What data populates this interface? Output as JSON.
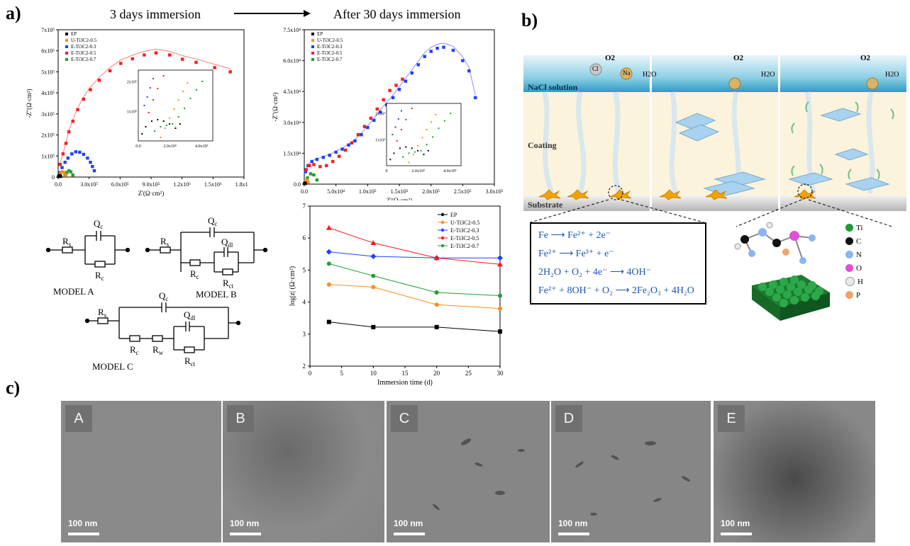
{
  "panel_labels": {
    "a": "a)",
    "b": "b)",
    "c": "c)"
  },
  "panel_a": {
    "title_left": "3 days immersion",
    "title_right": "After 30  days immersion",
    "legend_left": [
      "EP",
      "U-Ti3C2-0.5",
      "E-Ti3C2-0.3",
      "E-Ti3C2-0.5",
      "E-Ti3C2-0.7"
    ],
    "legend_right": [
      "EP",
      "U-Ti3C2-0.5",
      "E-Ti3C2-0.3",
      "E-Ti3C2-0.5",
      "E-Ti3C2-0.7"
    ],
    "series_colors": [
      "#000000",
      "#ff8c1a",
      "#1f3fff",
      "#ff1a1a",
      "#1fa02f"
    ],
    "models": [
      "MODEL  A",
      "MODEL  B",
      "MODEL  C"
    ]
  },
  "panel_b": {
    "labels": {
      "solution": "NaCl solution",
      "coating": "Coating",
      "substrate": "Substrate",
      "o2": "O2",
      "cl": "Cl",
      "na": "Na",
      "h2o": "H2O"
    },
    "reactions": [
      "Fe ⟶ Fe²⁺ + 2e⁻",
      "Fe²⁺ ⟶ Fe³⁺ + e⁻",
      "2H₂O + O₂ + 4e⁻ ⟶ 4OH⁻",
      "Fe²⁺ + 8OH⁻ + O₂ ⟶ 2Fe₂O₃ + 4H₂O"
    ],
    "atom_legend": [
      {
        "label": "Ti",
        "color": "#1e9a3a"
      },
      {
        "label": "C",
        "color": "#111111"
      },
      {
        "label": "N",
        "color": "#8ab4f2"
      },
      {
        "label": "O",
        "color": "#e04fd6"
      },
      {
        "label": "H",
        "color": "#e9e9e9"
      },
      {
        "label": "P",
        "color": "#f0a36b"
      }
    ]
  },
  "panel_c": {
    "images": [
      {
        "letter": "A",
        "scale": "100 nm"
      },
      {
        "letter": "B",
        "scale": "100 nm"
      },
      {
        "letter": "C",
        "scale": "100 nm"
      },
      {
        "letter": "D",
        "scale": "100 nm"
      },
      {
        "letter": "E",
        "scale": "100 nm"
      }
    ]
  },
  "chart_data": [
    {
      "type": "scatter",
      "title": "3 days immersion",
      "xlabel": "Z'(Ω·cm²)",
      "ylabel": "-Z''(Ω·cm²)",
      "xticks": [
        "0.0",
        "3.0x10⁵",
        "6.0x10⁵",
        "9.0x10⁵",
        "1.2x10⁶",
        "1.5x10⁶",
        "1.8x10⁶"
      ],
      "yticks": [
        "0",
        "1x10⁵",
        "2x10⁵",
        "3x10⁵",
        "4x10⁵",
        "5x10⁵",
        "6x10⁵",
        "7x10⁵"
      ],
      "xlim": [
        0,
        1900000
      ],
      "ylim": [
        0,
        700000
      ],
      "series": [
        {
          "name": "E-Ti3C2-0.5",
          "x": [
            20000,
            50000,
            80000,
            110000,
            150000,
            200000,
            260000,
            330000,
            420000,
            530000,
            640000,
            760000,
            880000,
            1000000,
            1140000,
            1270000,
            1410000,
            1600000,
            1760000
          ],
          "y": [
            60000,
            110000,
            160000,
            215000,
            265000,
            320000,
            370000,
            415000,
            460000,
            505000,
            540000,
            562000,
            580000,
            590000,
            580000,
            560000,
            545000,
            520000,
            500000
          ]
        },
        {
          "name": "E-Ti3C2-0.3",
          "x": [
            20000,
            40000,
            70000,
            100000,
            140000,
            180000,
            220000,
            260000,
            300000,
            330000,
            350000,
            370000
          ],
          "y": [
            20000,
            45000,
            70000,
            90000,
            110000,
            120000,
            118000,
            108000,
            90000,
            70000,
            50000,
            30000
          ]
        },
        {
          "name": "E-Ti3C2-0.7",
          "x": [
            70000,
            90000,
            110000,
            130000,
            150000
          ],
          "y": [
            10000,
            22000,
            30000,
            25000,
            10000
          ]
        },
        {
          "name": "U-Ti3C2-0.5",
          "x": [
            20000,
            40000,
            60000,
            80000
          ],
          "y": [
            15000,
            25000,
            22000,
            8000
          ]
        },
        {
          "name": "EP",
          "x": [
            5000,
            10000,
            15000,
            20000,
            25000
          ],
          "y": [
            3000,
            6000,
            7000,
            6000,
            3000
          ]
        }
      ],
      "inset": {
        "xticks": [
          "0.0",
          "2.0x10⁵",
          "4.0x10⁵"
        ],
        "yticks": [
          "1x10⁵",
          "2x10⁵"
        ]
      }
    },
    {
      "type": "scatter",
      "title": "After 30  days immersion",
      "xlabel": "Z'(Ω·cm²)",
      "ylabel": "-Z''(Ω·cm²)",
      "xticks": [
        "0.0",
        "5.0x10⁴",
        "1.0x10⁵",
        "1.5x10⁵",
        "2.0x10⁵",
        "2.5x10⁵",
        "3.0x10⁵"
      ],
      "yticks": [
        "0.0",
        "1.5x10⁴",
        "3.0x10⁴",
        "4.5x10⁴",
        "6.0x10⁴",
        "7.5x10⁴"
      ],
      "xlim": [
        0,
        300000
      ],
      "ylim": [
        0,
        75000
      ],
      "series": [
        {
          "name": "E-Ti3C2-0.3",
          "x": [
            2000,
            6000,
            12000,
            20000,
            30000,
            40000,
            50000,
            60000,
            70000,
            80000,
            90000,
            100000,
            110000,
            120000,
            130000,
            140000,
            150000,
            160000,
            170000,
            180000,
            190000,
            200000,
            210000,
            220000,
            235000,
            250000,
            260000,
            270000
          ],
          "y": [
            6000,
            9000,
            11000,
            12000,
            13000,
            14000,
            15500,
            17000,
            19000,
            21000,
            24000,
            27500,
            31000,
            35000,
            38500,
            42000,
            46000,
            50000,
            54000,
            58000,
            62000,
            64500,
            66000,
            66500,
            65000,
            60000,
            55000,
            42000
          ]
        },
        {
          "name": "E-Ti3C2-0.5",
          "x": [
            3000,
            8000,
            15000,
            25000,
            35000,
            45000,
            55000,
            65000,
            75000,
            85000,
            95000,
            105000,
            115000,
            125000,
            135000,
            145000,
            155000
          ],
          "y": [
            7000,
            9000,
            9500,
            8500,
            9000,
            11000,
            13500,
            16500,
            20000,
            24000,
            28000,
            32000,
            36500,
            41000,
            45500,
            48000,
            51000
          ]
        },
        {
          "name": "E-Ti3C2-0.7",
          "x": [
            5000,
            10000,
            15000,
            20000
          ],
          "y": [
            3000,
            5000,
            4500,
            2000
          ]
        },
        {
          "name": "U-Ti3C2-0.5",
          "x": [
            2000,
            4000,
            6000
          ],
          "y": [
            1000,
            2000,
            1000
          ]
        },
        {
          "name": "EP",
          "x": [
            500,
            1000,
            1500
          ],
          "y": [
            300,
            500,
            300
          ]
        }
      ],
      "inset": {
        "xticks": [
          "0",
          "2.0x10³",
          "4.0x10³"
        ],
        "yticks": [
          "1x10³",
          "2x10³"
        ]
      }
    },
    {
      "type": "line",
      "title": "",
      "xlabel": "Immersion time (d)",
      "ylabel": "log|z| (Ω·cm²)",
      "xlim": [
        0,
        30
      ],
      "ylim": [
        2,
        7
      ],
      "xticks": [
        "0",
        "5",
        "10",
        "15",
        "20",
        "25",
        "30"
      ],
      "yticks": [
        "2",
        "3",
        "4",
        "5",
        "6",
        "7"
      ],
      "x": [
        3,
        10,
        20,
        30
      ],
      "series": [
        {
          "name": "EP",
          "values": [
            3.38,
            3.22,
            3.22,
            3.08
          ],
          "color": "#000000",
          "marker": "square"
        },
        {
          "name": "U-Ti3C2-0.5",
          "values": [
            4.55,
            4.47,
            3.92,
            3.8
          ],
          "color": "#ff8c1a",
          "marker": "circle"
        },
        {
          "name": "E-Ti3C2-0.3",
          "values": [
            5.57,
            5.43,
            5.38,
            5.38
          ],
          "color": "#1f3fff",
          "marker": "diamond"
        },
        {
          "name": "E-Ti3C2-0.5",
          "values": [
            6.32,
            5.85,
            5.38,
            5.18
          ],
          "color": "#ff1a1a",
          "marker": "triangle"
        },
        {
          "name": "E-Ti3C2-0.7",
          "values": [
            5.2,
            4.82,
            4.3,
            4.2
          ],
          "color": "#1fa02f",
          "marker": "circle"
        }
      ]
    }
  ]
}
